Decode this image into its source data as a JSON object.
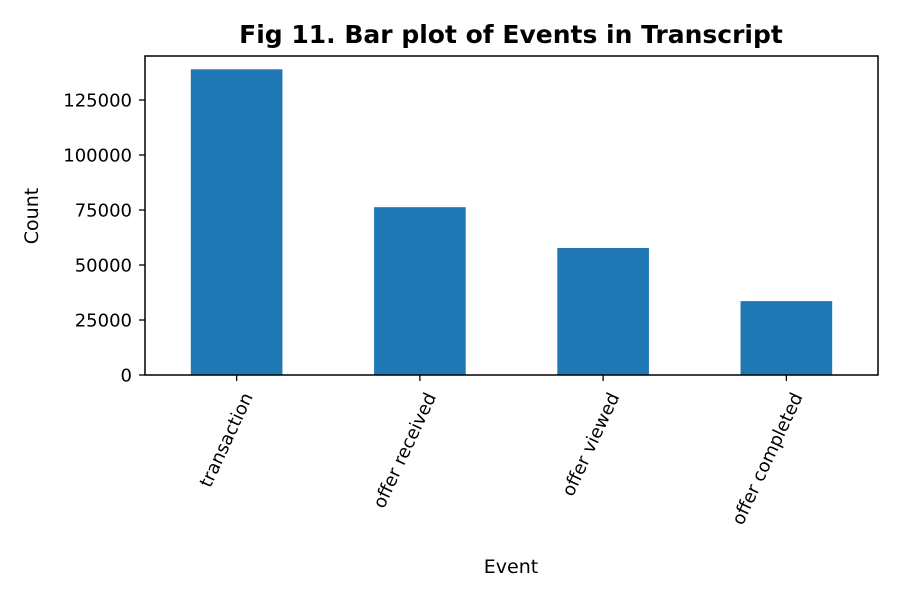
{
  "chart_data": {
    "type": "bar",
    "title": "Fig 11. Bar plot of Events in Transcript",
    "xlabel": "Event",
    "ylabel": "Count",
    "categories": [
      "transaction",
      "offer received",
      "offer viewed",
      "offer completed"
    ],
    "values": [
      138953,
      76277,
      57725,
      33579
    ],
    "ylim": [
      0,
      145000
    ],
    "yticks": [
      0,
      25000,
      50000,
      75000,
      100000,
      125000
    ],
    "grid": false,
    "legend": "none",
    "colors": {
      "bar": "#1f77b4",
      "axis": "#000000"
    }
  }
}
